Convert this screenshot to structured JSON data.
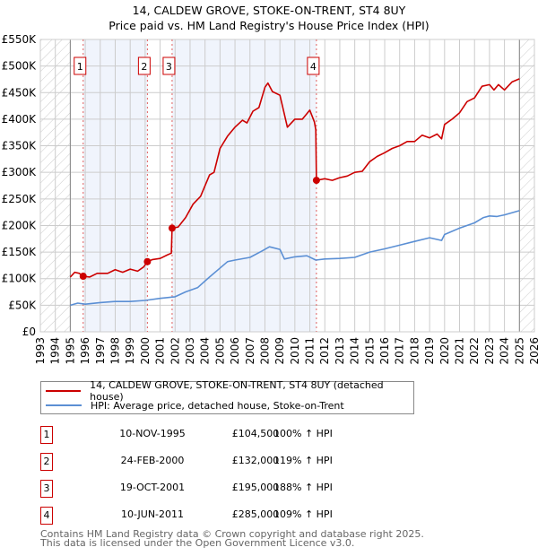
{
  "chart_data": {
    "type": "line",
    "title": "14, CALDEW GROVE, STOKE-ON-TRENT, ST4 8UY",
    "subtitle": "Price paid vs. HM Land Registry's House Price Index (HPI)",
    "xlim": [
      1993,
      2026
    ],
    "ylim": [
      0,
      550000
    ],
    "x_ticks": [
      "1993",
      "1994",
      "1995",
      "1996",
      "1997",
      "1998",
      "1999",
      "2000",
      "2001",
      "2002",
      "2003",
      "2004",
      "2005",
      "2006",
      "2007",
      "2008",
      "2009",
      "2010",
      "2011",
      "2012",
      "2013",
      "2014",
      "2015",
      "2016",
      "2017",
      "2018",
      "2019",
      "2020",
      "2021",
      "2022",
      "2023",
      "2024",
      "2025",
      "2026"
    ],
    "y_ticks": [
      {
        "v": 0,
        "label": "£0"
      },
      {
        "v": 50000,
        "label": "£50K"
      },
      {
        "v": 100000,
        "label": "£100K"
      },
      {
        "v": 150000,
        "label": "£150K"
      },
      {
        "v": 200000,
        "label": "£200K"
      },
      {
        "v": 250000,
        "label": "£250K"
      },
      {
        "v": 300000,
        "label": "£300K"
      },
      {
        "v": 350000,
        "label": "£350K"
      },
      {
        "v": 400000,
        "label": "£400K"
      },
      {
        "v": 450000,
        "label": "£450K"
      },
      {
        "v": 500000,
        "label": "£500K"
      },
      {
        "v": 550000,
        "label": "£550K"
      }
    ],
    "grid": true,
    "hatched_ranges": [
      [
        1993,
        1995
      ],
      [
        2025,
        2026
      ]
    ],
    "shaded_ranges": [
      [
        1995.86,
        2000.15
      ],
      [
        2001.8,
        2011.44
      ]
    ],
    "series": [
      {
        "name": "14, CALDEW GROVE, STOKE-ON-TRENT, ST4 8UY (detached house)",
        "color": "#cc0000",
        "points": [
          [
            1995,
            103
          ],
          [
            1995.3,
            112
          ],
          [
            1995.6,
            110
          ],
          [
            1995.86,
            104.5
          ],
          [
            1996.3,
            103
          ],
          [
            1996.8,
            110
          ],
          [
            1997.5,
            110
          ],
          [
            1998,
            117
          ],
          [
            1998.5,
            112
          ],
          [
            1999,
            118
          ],
          [
            1999.5,
            114
          ],
          [
            1999.9,
            122
          ],
          [
            2000.15,
            132
          ],
          [
            2000.5,
            136
          ],
          [
            2001,
            138
          ],
          [
            2001.5,
            145
          ],
          [
            2001.75,
            148
          ],
          [
            2001.8,
            195
          ],
          [
            2002.2,
            197
          ],
          [
            2002.7,
            215
          ],
          [
            2003.2,
            240
          ],
          [
            2003.7,
            255
          ],
          [
            2004.3,
            295
          ],
          [
            2004.6,
            300
          ],
          [
            2005,
            345
          ],
          [
            2005.5,
            368
          ],
          [
            2006,
            385
          ],
          [
            2006.5,
            398
          ],
          [
            2006.8,
            393
          ],
          [
            2007.2,
            415
          ],
          [
            2007.6,
            422
          ],
          [
            2008,
            460
          ],
          [
            2008.2,
            468
          ],
          [
            2008.5,
            452
          ],
          [
            2009,
            445
          ],
          [
            2009.5,
            385
          ],
          [
            2010,
            400
          ],
          [
            2010.5,
            400
          ],
          [
            2011,
            417
          ],
          [
            2011.3,
            395
          ],
          [
            2011.4,
            380
          ],
          [
            2011.44,
            285
          ],
          [
            2012,
            288
          ],
          [
            2012.5,
            285
          ],
          [
            2013,
            290
          ],
          [
            2013.5,
            293
          ],
          [
            2014,
            300
          ],
          [
            2014.5,
            302
          ],
          [
            2015,
            320
          ],
          [
            2015.5,
            330
          ],
          [
            2016,
            337
          ],
          [
            2016.5,
            345
          ],
          [
            2017,
            350
          ],
          [
            2017.5,
            358
          ],
          [
            2018,
            358
          ],
          [
            2018.5,
            370
          ],
          [
            2019,
            365
          ],
          [
            2019.5,
            372
          ],
          [
            2019.8,
            363
          ],
          [
            2020,
            390
          ],
          [
            2020.5,
            400
          ],
          [
            2021,
            412
          ],
          [
            2021.5,
            433
          ],
          [
            2022,
            440
          ],
          [
            2022.5,
            462
          ],
          [
            2023,
            465
          ],
          [
            2023.3,
            455
          ],
          [
            2023.6,
            465
          ],
          [
            2024,
            455
          ],
          [
            2024.5,
            470
          ],
          [
            2025,
            476
          ]
        ]
      },
      {
        "name": "HPI: Average price, detached house, Stoke-on-Trent",
        "color": "#5b8fd4",
        "points": [
          [
            1995,
            50
          ],
          [
            1995.5,
            54
          ],
          [
            1996,
            52
          ],
          [
            1997,
            55
          ],
          [
            1998,
            57
          ],
          [
            1999,
            57
          ],
          [
            2000,
            59
          ],
          [
            2001,
            63
          ],
          [
            2002,
            66
          ],
          [
            2002.7,
            75
          ],
          [
            2003.5,
            83
          ],
          [
            2004.3,
            103
          ],
          [
            2004.8,
            115
          ],
          [
            2005.5,
            132
          ],
          [
            2006,
            135
          ],
          [
            2007,
            140
          ],
          [
            2007.8,
            152
          ],
          [
            2008.3,
            160
          ],
          [
            2009,
            155
          ],
          [
            2009.3,
            137
          ],
          [
            2010,
            141
          ],
          [
            2010.8,
            143
          ],
          [
            2011.4,
            135
          ],
          [
            2012,
            137
          ],
          [
            2013,
            138
          ],
          [
            2014,
            140
          ],
          [
            2015,
            150
          ],
          [
            2016,
            156
          ],
          [
            2017,
            163
          ],
          [
            2018,
            170
          ],
          [
            2019,
            177
          ],
          [
            2019.8,
            172
          ],
          [
            2020,
            183
          ],
          [
            2021,
            195
          ],
          [
            2022,
            205
          ],
          [
            2022.6,
            215
          ],
          [
            2023,
            218
          ],
          [
            2023.5,
            217
          ],
          [
            2024,
            220
          ],
          [
            2025,
            228
          ]
        ]
      }
    ],
    "sales": [
      {
        "label": "1",
        "x": 1995.86,
        "price": 104.5
      },
      {
        "label": "2",
        "x": 2000.15,
        "price": 132
      },
      {
        "label": "3",
        "x": 2001.8,
        "price": 195
      },
      {
        "label": "4",
        "x": 2011.44,
        "price": 285
      }
    ],
    "legend_placement": "below"
  },
  "legend": {
    "property": "14, CALDEW GROVE, STOKE-ON-TRENT, ST4 8UY (detached house)",
    "hpi": "HPI: Average price, detached house, Stoke-on-Trent"
  },
  "table": [
    {
      "num": "1",
      "date": "10-NOV-1995",
      "price": "£104,500",
      "hpi": "100% ↑ HPI"
    },
    {
      "num": "2",
      "date": "24-FEB-2000",
      "price": "£132,000",
      "hpi": "119% ↑ HPI"
    },
    {
      "num": "3",
      "date": "19-OCT-2001",
      "price": "£195,000",
      "hpi": "188% ↑ HPI"
    },
    {
      "num": "4",
      "date": "10-JUN-2011",
      "price": "£285,000",
      "hpi": "109% ↑ HPI"
    }
  ],
  "footer": {
    "line1": "Contains HM Land Registry data © Crown copyright and database right 2025.",
    "line2": "This data is licensed under the Open Government Licence v3.0."
  }
}
